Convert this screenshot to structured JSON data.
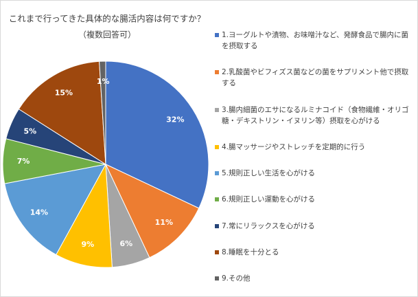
{
  "chart_data": {
    "type": "pie",
    "title": "これまで行ってきた具体的な腸活内容は何ですか？",
    "subtitle": "（複数回答可）",
    "categories": [
      "1.ヨーグルトや漬物、お味噌汁など、発酵食品で腸内に菌を摂取する",
      "2.乳酸菌やビフィズス菌などの菌をサプリメント他で摂取する",
      "3.腸内細菌のエサになるルミナコイド（食物繊維・オリゴ糖・デキストリン・イヌリン等）摂取を心がける",
      "4.腸マッサージやストレッチを定期的に行う",
      "5.規則正しい生活を心がける",
      "6.規則正しい運動を心がける",
      "7.常にリラックスを心がける",
      "8.睡眠を十分とる",
      "9.その他"
    ],
    "values": [
      32,
      11,
      6,
      9,
      14,
      7,
      5,
      15,
      1
    ],
    "value_labels": [
      "32%",
      "11%",
      "6%",
      "9%",
      "14%",
      "7%",
      "5%",
      "15%",
      "1%"
    ],
    "colors": [
      "#4472c4",
      "#ed7d31",
      "#a5a5a5",
      "#ffc000",
      "#5b9bd5",
      "#70ad47",
      "#264478",
      "#9e480e",
      "#636363"
    ]
  }
}
